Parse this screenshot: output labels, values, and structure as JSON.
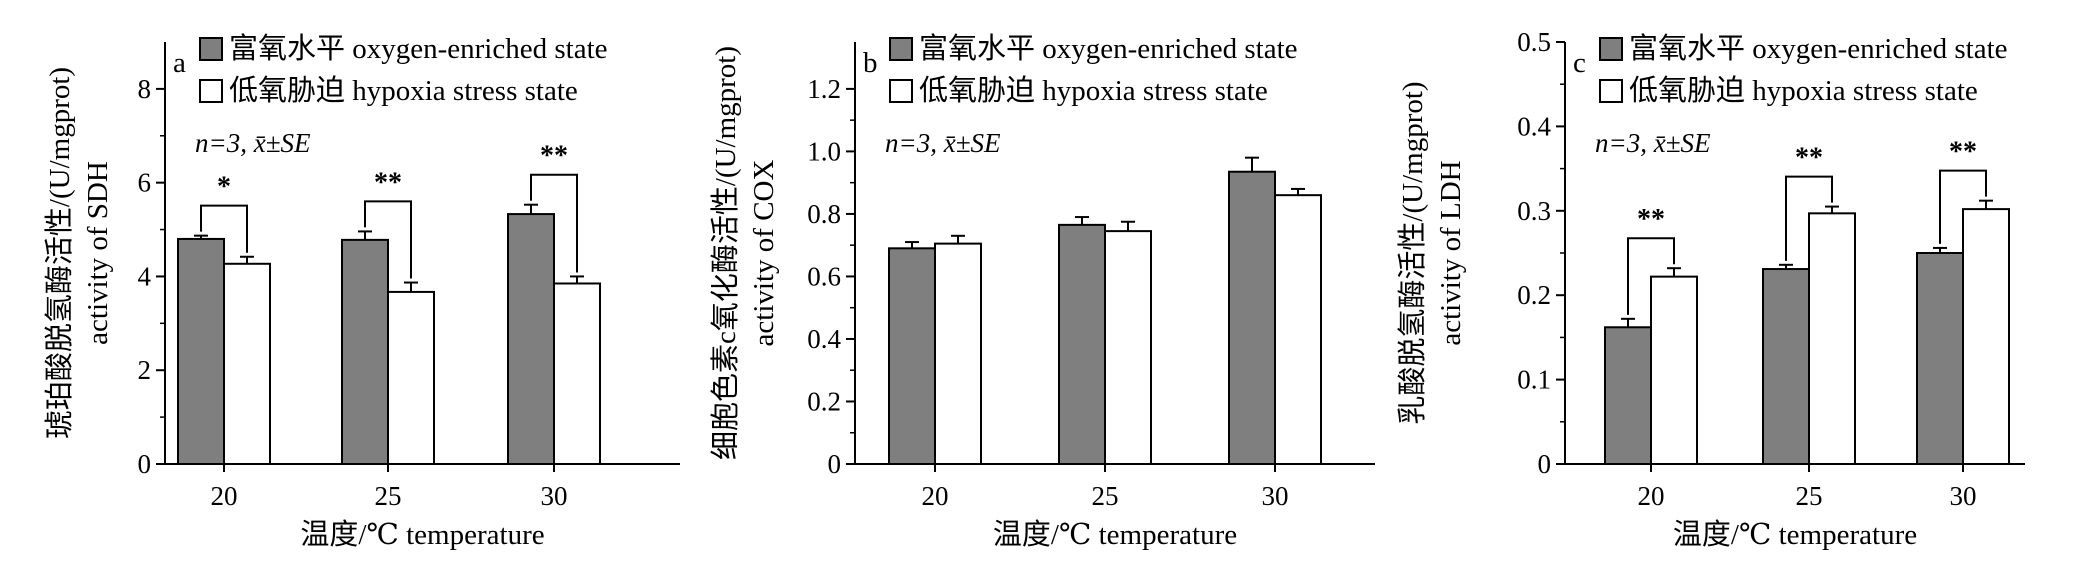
{
  "figure": {
    "legend": {
      "enriched_label": "富氧水平 oxygen-enriched state",
      "hypoxia_label": "低氧胁迫 hypoxia stress state"
    },
    "colors": {
      "enriched": "#7f7f7f",
      "hypoxia": "#ffffff",
      "stroke": "#000000"
    }
  },
  "chart_data": [
    {
      "type": "bar",
      "panel": "a",
      "categories": [
        "20",
        "25",
        "30"
      ],
      "series": [
        {
          "name": "富氧水平 oxygen-enriched state",
          "values": [
            4.8,
            4.78,
            5.33
          ],
          "errors": [
            0.07,
            0.18,
            0.2
          ]
        },
        {
          "name": "低氧胁迫 hypoxia stress state",
          "values": [
            4.27,
            3.67,
            3.85
          ],
          "errors": [
            0.15,
            0.2,
            0.15
          ]
        }
      ],
      "ylabel_cn": "琥珀酸脱氢酶活性/(U/mgprot)",
      "ylabel_en": "activity of SDH",
      "xlabel": "温度/℃ temperature",
      "ylim": [
        0,
        9
      ],
      "yticks": [
        0,
        2,
        4,
        6,
        8
      ],
      "ytick_labels": [
        "0",
        "2",
        "4",
        "6",
        "8"
      ],
      "annotation": "n=3, x̄±SE",
      "significance": [
        "*",
        "**",
        "**"
      ]
    },
    {
      "type": "bar",
      "panel": "b",
      "categories": [
        "20",
        "25",
        "30"
      ],
      "series": [
        {
          "name": "富氧水平 oxygen-enriched state",
          "values": [
            0.69,
            0.765,
            0.935
          ],
          "errors": [
            0.02,
            0.025,
            0.045
          ]
        },
        {
          "name": "低氧胁迫 hypoxia stress state",
          "values": [
            0.705,
            0.745,
            0.86
          ],
          "errors": [
            0.025,
            0.03,
            0.02
          ]
        }
      ],
      "ylabel_cn": "细胞色素c氧化酶活性/(U/mgprot)",
      "ylabel_en": "activity of COX",
      "xlabel": "温度/℃ temperature",
      "ylim": [
        0,
        1.35
      ],
      "yticks": [
        0,
        0.2,
        0.4,
        0.6,
        0.8,
        1.0,
        1.2
      ],
      "ytick_labels": [
        "0",
        "0.2",
        "0.4",
        "0.6",
        "0.8",
        "1.0",
        "1.2"
      ],
      "annotation": "n=3, x̄±SE",
      "significance": [
        "",
        "",
        ""
      ]
    },
    {
      "type": "bar",
      "panel": "c",
      "categories": [
        "20",
        "25",
        "30"
      ],
      "series": [
        {
          "name": "富氧水平 oxygen-enriched state",
          "values": [
            0.162,
            0.231,
            0.25
          ],
          "errors": [
            0.01,
            0.005,
            0.006
          ]
        },
        {
          "name": "低氧胁迫 hypoxia stress state",
          "values": [
            0.222,
            0.297,
            0.302
          ],
          "errors": [
            0.01,
            0.008,
            0.01
          ]
        }
      ],
      "ylabel_cn": "乳酸脱氢酶活性/(U/mgprot)",
      "ylabel_en": "activity of LDH",
      "xlabel": "温度/℃ temperature",
      "ylim": [
        0,
        0.5
      ],
      "yticks": [
        0,
        0.1,
        0.2,
        0.3,
        0.4,
        0.5
      ],
      "ytick_labels": [
        "0",
        "0.1",
        "0.2",
        "0.3",
        "0.4",
        "0.5"
      ],
      "annotation": "n=3, x̄±SE",
      "significance": [
        "**",
        "**",
        "**"
      ]
    }
  ]
}
